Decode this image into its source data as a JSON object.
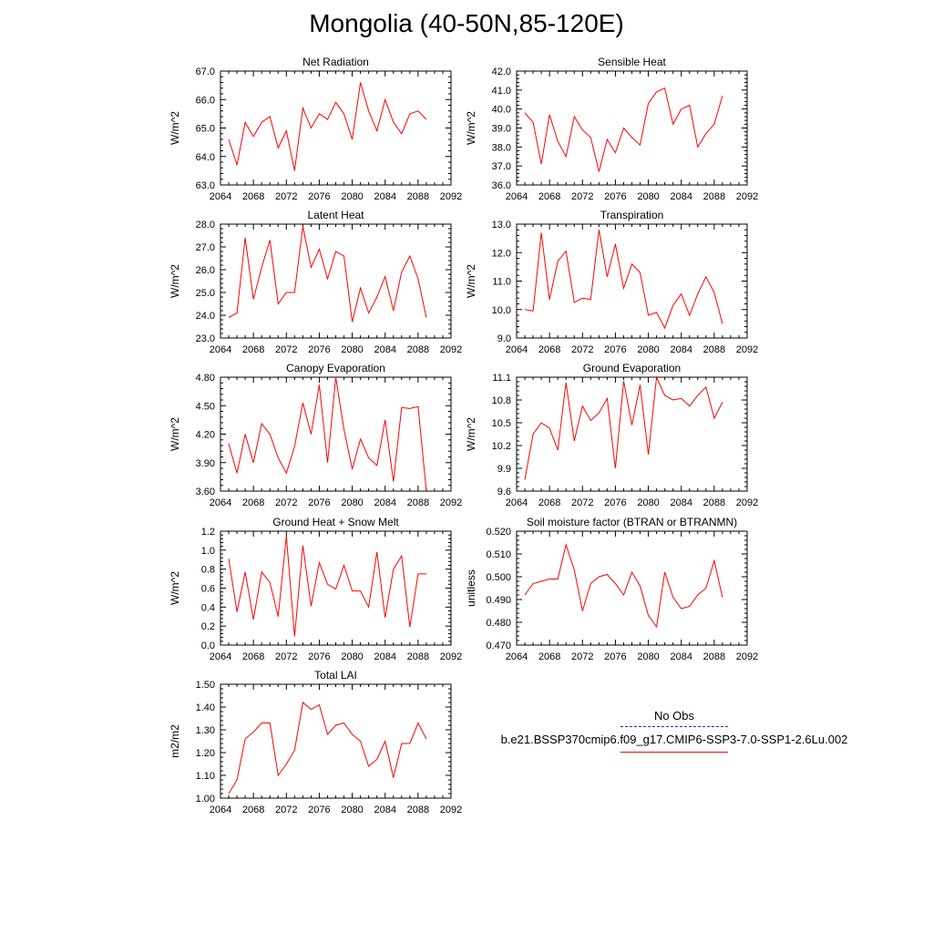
{
  "title": "Mongolia (40-50N,85-120E)",
  "legend": {
    "obs_label": "No Obs",
    "model_label": "b.e21.BSSP370cmip6.f09_g17.CMIP6-SSP3-7.0-SSP1-2.6Lu.002",
    "obs_color": "#2a2aa0",
    "model_color": "#ff0000"
  },
  "chart_data": [
    {
      "type": "line",
      "title": "Net Radiation",
      "ylabel": "W/m^2",
      "xlabel": "",
      "xlim": [
        2064,
        2092
      ],
      "ylim": [
        63.0,
        67.0
      ],
      "yticks": [
        63.0,
        64.0,
        65.0,
        66.0,
        67.0
      ],
      "ytick_labels": [
        "63.0",
        "64.0",
        "65.0",
        "66.0",
        "67.0"
      ],
      "xticks": [
        2064,
        2068,
        2072,
        2076,
        2080,
        2084,
        2088,
        2092
      ],
      "series": [
        {
          "color": "#ff0000",
          "x": [
            2065,
            2066,
            2067,
            2068,
            2069,
            2070,
            2071,
            2072,
            2073,
            2074,
            2075,
            2076,
            2077,
            2078,
            2079,
            2080,
            2081,
            2082,
            2083,
            2084,
            2085,
            2086,
            2087,
            2088,
            2089
          ],
          "values": [
            64.6,
            63.7,
            65.2,
            64.7,
            65.2,
            65.4,
            64.3,
            64.9,
            63.5,
            65.7,
            65.0,
            65.5,
            65.3,
            65.9,
            65.5,
            64.6,
            66.6,
            65.6,
            64.9,
            66.0,
            65.2,
            64.8,
            65.5,
            65.6,
            65.3
          ]
        }
      ]
    },
    {
      "type": "line",
      "title": "Sensible Heat",
      "ylabel": "W/m^2",
      "xlabel": "",
      "xlim": [
        2064,
        2092
      ],
      "ylim": [
        36.0,
        42.0
      ],
      "yticks": [
        36.0,
        37.0,
        38.0,
        39.0,
        40.0,
        41.0,
        42.0
      ],
      "ytick_labels": [
        "36.0",
        "37.0",
        "38.0",
        "39.0",
        "40.0",
        "41.0",
        "42.0"
      ],
      "xticks": [
        2064,
        2068,
        2072,
        2076,
        2080,
        2084,
        2088,
        2092
      ],
      "series": [
        {
          "color": "#ff0000",
          "x": [
            2065,
            2066,
            2067,
            2068,
            2069,
            2070,
            2071,
            2072,
            2073,
            2074,
            2075,
            2076,
            2077,
            2078,
            2079,
            2080,
            2081,
            2082,
            2083,
            2084,
            2085,
            2086,
            2087,
            2088,
            2089
          ],
          "values": [
            39.8,
            39.3,
            37.1,
            39.7,
            38.3,
            37.5,
            39.6,
            38.9,
            38.5,
            36.7,
            38.4,
            37.7,
            39.0,
            38.5,
            38.1,
            40.3,
            40.9,
            41.1,
            39.2,
            40.0,
            40.2,
            38.0,
            38.7,
            39.2,
            40.7
          ]
        }
      ]
    },
    {
      "type": "line",
      "title": "Latent Heat",
      "ylabel": "W/m^2",
      "xlabel": "",
      "xlim": [
        2064,
        2092
      ],
      "ylim": [
        23.0,
        28.0
      ],
      "yticks": [
        23.0,
        24.0,
        25.0,
        26.0,
        27.0,
        28.0
      ],
      "ytick_labels": [
        "23.0",
        "24.0",
        "25.0",
        "26.0",
        "27.0",
        "28.0"
      ],
      "xticks": [
        2064,
        2068,
        2072,
        2076,
        2080,
        2084,
        2088,
        2092
      ],
      "series": [
        {
          "color": "#ff0000",
          "x": [
            2065,
            2066,
            2067,
            2068,
            2069,
            2070,
            2071,
            2072,
            2073,
            2074,
            2075,
            2076,
            2077,
            2078,
            2079,
            2080,
            2081,
            2082,
            2083,
            2084,
            2085,
            2086,
            2087,
            2088,
            2089
          ],
          "values": [
            23.9,
            24.1,
            27.4,
            24.7,
            26.1,
            27.3,
            24.5,
            25.0,
            25.0,
            27.9,
            26.1,
            26.9,
            25.6,
            26.8,
            26.6,
            23.7,
            25.2,
            24.1,
            24.8,
            25.7,
            24.2,
            25.9,
            26.6,
            25.6,
            23.9
          ]
        }
      ]
    },
    {
      "type": "line",
      "title": "Transpiration",
      "ylabel": "W/m^2",
      "xlabel": "",
      "xlim": [
        2064,
        2092
      ],
      "ylim": [
        9.0,
        13.0
      ],
      "yticks": [
        9.0,
        10.0,
        11.0,
        12.0,
        13.0
      ],
      "ytick_labels": [
        "9.0",
        "10.0",
        "11.0",
        "12.0",
        "13.0"
      ],
      "xticks": [
        2064,
        2068,
        2072,
        2076,
        2080,
        2084,
        2088,
        2092
      ],
      "series": [
        {
          "color": "#ff0000",
          "x": [
            2065,
            2066,
            2067,
            2068,
            2069,
            2070,
            2071,
            2072,
            2073,
            2074,
            2075,
            2076,
            2077,
            2078,
            2079,
            2080,
            2081,
            2082,
            2083,
            2084,
            2085,
            2086,
            2087,
            2088,
            2089
          ],
          "values": [
            10.0,
            9.95,
            12.7,
            10.35,
            11.7,
            12.05,
            10.25,
            10.4,
            10.35,
            12.8,
            11.15,
            12.3,
            10.75,
            11.6,
            11.3,
            9.8,
            9.9,
            9.35,
            10.15,
            10.55,
            9.8,
            10.55,
            11.15,
            10.6,
            9.5
          ]
        }
      ]
    },
    {
      "type": "line",
      "title": "Canopy Evaporation",
      "ylabel": "W/m^2",
      "xlabel": "",
      "xlim": [
        2064,
        2092
      ],
      "ylim": [
        3.6,
        4.8
      ],
      "yticks": [
        3.6,
        3.9,
        4.2,
        4.5,
        4.8
      ],
      "ytick_labels": [
        "3.60",
        "3.90",
        "4.20",
        "4.50",
        "4.80"
      ],
      "xticks": [
        2064,
        2068,
        2072,
        2076,
        2080,
        2084,
        2088,
        2092
      ],
      "series": [
        {
          "color": "#ff0000",
          "x": [
            2065,
            2066,
            2067,
            2068,
            2069,
            2070,
            2071,
            2072,
            2073,
            2074,
            2075,
            2076,
            2077,
            2078,
            2079,
            2080,
            2081,
            2082,
            2083,
            2084,
            2085,
            2086,
            2087,
            2088,
            2089
          ],
          "values": [
            4.1,
            3.79,
            4.2,
            3.9,
            4.31,
            4.2,
            3.95,
            3.79,
            4.07,
            4.53,
            4.2,
            4.72,
            3.9,
            4.8,
            4.25,
            3.83,
            4.15,
            3.95,
            3.87,
            4.35,
            3.7,
            4.48,
            4.47,
            4.49,
            3.6
          ]
        }
      ]
    },
    {
      "type": "line",
      "title": "Ground Evaporation",
      "ylabel": "W/m^2",
      "xlabel": "",
      "xlim": [
        2064,
        2092
      ],
      "ylim": [
        9.6,
        11.1
      ],
      "yticks": [
        9.6,
        9.9,
        10.2,
        10.5,
        10.8,
        11.1
      ],
      "ytick_labels": [
        "9.6",
        "9.9",
        "10.2",
        "10.5",
        "10.8",
        "11.1"
      ],
      "xticks": [
        2064,
        2068,
        2072,
        2076,
        2080,
        2084,
        2088,
        2092
      ],
      "series": [
        {
          "color": "#ff0000",
          "x": [
            2065,
            2066,
            2067,
            2068,
            2069,
            2070,
            2071,
            2072,
            2073,
            2074,
            2075,
            2076,
            2077,
            2078,
            2079,
            2080,
            2081,
            2082,
            2083,
            2084,
            2085,
            2086,
            2087,
            2088,
            2089
          ],
          "values": [
            9.75,
            10.35,
            10.5,
            10.43,
            10.14,
            11.03,
            10.26,
            10.72,
            10.53,
            10.63,
            10.82,
            9.9,
            11.05,
            10.47,
            11.0,
            10.08,
            11.12,
            10.86,
            10.8,
            10.82,
            10.72,
            10.86,
            10.97,
            10.56,
            10.77
          ]
        }
      ]
    },
    {
      "type": "line",
      "title": "Ground Heat + Snow Melt",
      "ylabel": "W/m^2",
      "xlabel": "",
      "xlim": [
        2064,
        2092
      ],
      "ylim": [
        0.0,
        1.2
      ],
      "yticks": [
        0.0,
        0.2,
        0.4,
        0.6,
        0.8,
        1.0,
        1.2
      ],
      "ytick_labels": [
        "0.0",
        "0.2",
        "0.4",
        "0.6",
        "0.8",
        "1.0",
        "1.2"
      ],
      "xticks": [
        2064,
        2068,
        2072,
        2076,
        2080,
        2084,
        2088,
        2092
      ],
      "series": [
        {
          "color": "#ff0000",
          "x": [
            2065,
            2066,
            2067,
            2068,
            2069,
            2070,
            2071,
            2072,
            2073,
            2074,
            2075,
            2076,
            2077,
            2078,
            2079,
            2080,
            2081,
            2082,
            2083,
            2084,
            2085,
            2086,
            2087,
            2088,
            2089
          ],
          "values": [
            0.91,
            0.35,
            0.77,
            0.27,
            0.77,
            0.66,
            0.3,
            1.15,
            0.09,
            1.05,
            0.41,
            0.87,
            0.64,
            0.59,
            0.84,
            0.57,
            0.57,
            0.4,
            0.98,
            0.29,
            0.8,
            0.94,
            0.19,
            0.75,
            0.75
          ]
        }
      ]
    },
    {
      "type": "line",
      "title": "Soil moisture factor (BTRAN or BTRANMN)",
      "ylabel": "unitless",
      "xlabel": "",
      "xlim": [
        2064,
        2092
      ],
      "ylim": [
        0.47,
        0.52
      ],
      "yticks": [
        0.47,
        0.48,
        0.49,
        0.5,
        0.51,
        0.52
      ],
      "ytick_labels": [
        "0.470",
        "0.480",
        "0.490",
        "0.500",
        "0.510",
        "0.520"
      ],
      "xticks": [
        2064,
        2068,
        2072,
        2076,
        2080,
        2084,
        2088,
        2092
      ],
      "series": [
        {
          "color": "#ff0000",
          "x": [
            2065,
            2066,
            2067,
            2068,
            2069,
            2070,
            2071,
            2072,
            2073,
            2074,
            2075,
            2076,
            2077,
            2078,
            2079,
            2080,
            2081,
            2082,
            2083,
            2084,
            2085,
            2086,
            2087,
            2088,
            2089
          ],
          "values": [
            0.492,
            0.497,
            0.498,
            0.499,
            0.499,
            0.514,
            0.503,
            0.485,
            0.497,
            0.5,
            0.501,
            0.497,
            0.492,
            0.502,
            0.496,
            0.483,
            0.478,
            0.502,
            0.491,
            0.486,
            0.487,
            0.492,
            0.495,
            0.507,
            0.491
          ]
        }
      ]
    },
    {
      "type": "line",
      "title": "Total LAI",
      "ylabel": "m2/m2",
      "xlabel": "",
      "xlim": [
        2064,
        2092
      ],
      "ylim": [
        1.0,
        1.5
      ],
      "yticks": [
        1.0,
        1.1,
        1.2,
        1.3,
        1.4,
        1.5
      ],
      "ytick_labels": [
        "1.00",
        "1.10",
        "1.20",
        "1.30",
        "1.40",
        "1.50"
      ],
      "xticks": [
        2064,
        2068,
        2072,
        2076,
        2080,
        2084,
        2088,
        2092
      ],
      "series": [
        {
          "color": "#ff0000",
          "x": [
            2065,
            2066,
            2067,
            2068,
            2069,
            2070,
            2071,
            2072,
            2073,
            2074,
            2075,
            2076,
            2077,
            2078,
            2079,
            2080,
            2081,
            2082,
            2083,
            2084,
            2085,
            2086,
            2087,
            2088,
            2089
          ],
          "values": [
            1.02,
            1.08,
            1.26,
            1.29,
            1.33,
            1.33,
            1.1,
            1.15,
            1.21,
            1.42,
            1.39,
            1.41,
            1.28,
            1.32,
            1.33,
            1.28,
            1.25,
            1.14,
            1.17,
            1.25,
            1.09,
            1.24,
            1.24,
            1.33,
            1.26
          ]
        }
      ]
    }
  ]
}
